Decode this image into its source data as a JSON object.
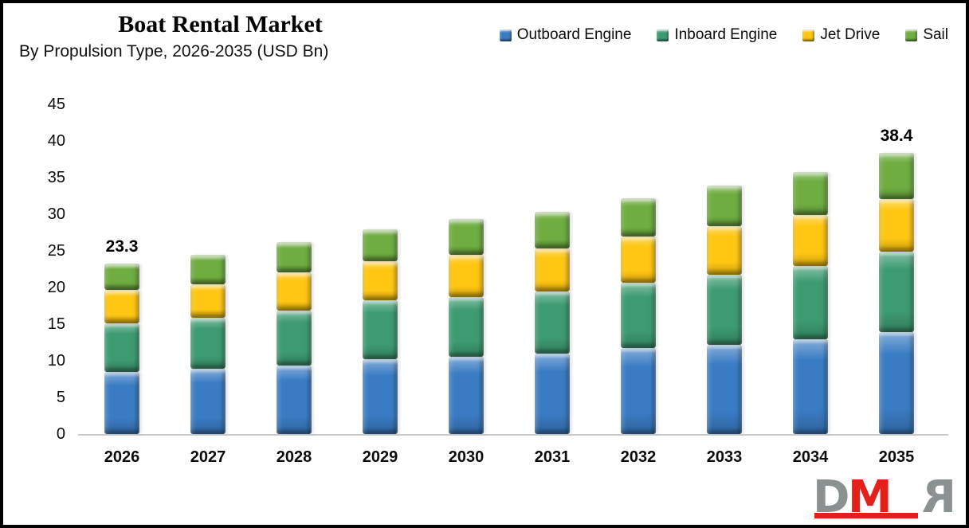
{
  "header": {
    "title": "Boat Rental Market",
    "subtitle": "By Propulsion Type, 2026-2035 (USD Bn)"
  },
  "logo": {
    "letter_d": "D",
    "letter_m": "M",
    "letter_r": "R",
    "gray": "#8b9091",
    "red": "#e32119"
  },
  "chart_data": {
    "type": "bar",
    "stacked": true,
    "grid": false,
    "legend_position": "top-right",
    "unit": "USD Bn",
    "categories": [
      "2026",
      "2027",
      "2028",
      "2029",
      "2030",
      "2031",
      "2032",
      "2033",
      "2034",
      "2035"
    ],
    "series": [
      {
        "name": "Outboard Engine",
        "color": "#3a7cc4",
        "values": [
          8.5,
          8.9,
          9.4,
          10.2,
          10.6,
          11.0,
          11.7,
          12.2,
          12.9,
          13.9
        ]
      },
      {
        "name": "Inboard Engine",
        "color": "#3d9b72",
        "values": [
          6.6,
          7.0,
          7.5,
          8.1,
          8.1,
          8.5,
          9.0,
          9.6,
          10.1,
          11.0
        ]
      },
      {
        "name": "Jet Drive",
        "color": "#ffc612",
        "values": [
          4.6,
          4.6,
          5.2,
          5.3,
          5.8,
          5.9,
          6.3,
          6.6,
          6.9,
          7.2
        ]
      },
      {
        "name": "Sail",
        "color": "#6fad40",
        "values": [
          3.6,
          4.0,
          4.1,
          4.4,
          4.9,
          5.0,
          5.2,
          5.6,
          5.9,
          6.3
        ]
      }
    ],
    "annotations": [
      {
        "category_index": 0,
        "label": "23.3"
      },
      {
        "category_index": 9,
        "label": "38.4"
      }
    ],
    "ylim": [
      0,
      45
    ],
    "yticks": [
      0,
      5,
      10,
      15,
      20,
      25,
      30,
      35,
      40,
      45
    ]
  }
}
